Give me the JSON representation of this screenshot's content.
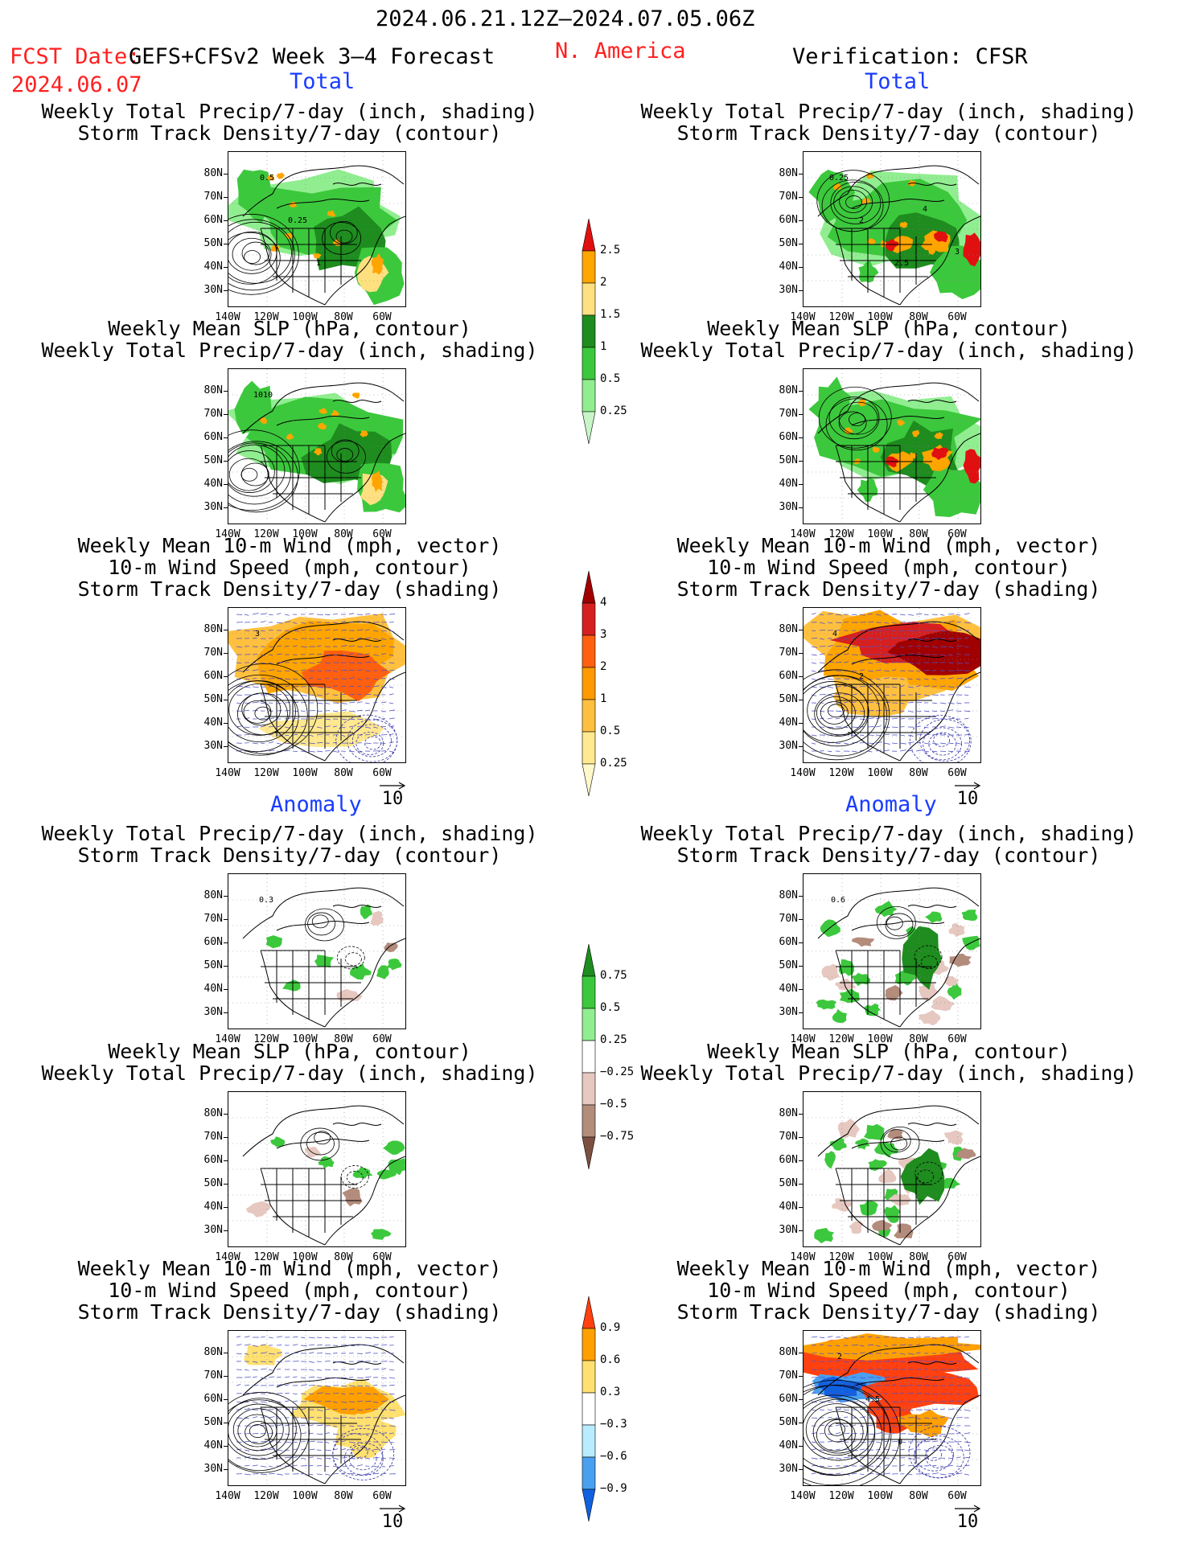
{
  "header": {
    "date_range": "2024.06.21.12Z–2024.07.05.06Z",
    "fcst_label": "FCST Date:",
    "model": "GEFS+CFSv2 Week 3–4 Forecast",
    "fcst_date": "2024.06.07",
    "region": "N. America",
    "verification": "Verification: CFSR"
  },
  "sections": {
    "total": "Total",
    "anomaly": "Anomaly"
  },
  "titles": {
    "precip_storm": "Weekly Total Precip/7-day (inch, shading)\nStorm Track Density/7-day (contour)",
    "slp_precip": "Weekly Mean SLP (hPa, contour)\nWeekly Total Precip/7-day (inch, shading)",
    "wind_storm": "Weekly Mean 10-m Wind (mph, vector)\n10-m Wind Speed (mph, contour)\nStorm Track Density/7-day (shading)"
  },
  "axes": {
    "lat_labels": [
      "80N",
      "70N",
      "60N",
      "50N",
      "40N",
      "30N"
    ],
    "lon_labels": [
      "140W",
      "120W",
      "100W",
      "80W",
      "60W"
    ]
  },
  "vector_ref": "10",
  "contour_labels": {
    "fc_total_precip": [
      "0.5",
      "0.25",
      "1"
    ],
    "fc_total_slp": [
      "1010"
    ],
    "fc_total_wind": [
      "3"
    ],
    "ob_total_precip": [
      "0.25",
      "2",
      "2.5",
      "4",
      "3"
    ],
    "ob_total_wind": [
      "4",
      "2"
    ],
    "fc_anom_precip": [
      "0.3"
    ],
    "ob_anom_precip": [
      "0.6"
    ],
    "ob_anom_wind": [
      "2",
      "4.5",
      "0"
    ]
  },
  "colorbars": {
    "total_precip": {
      "labels": [
        "2.5",
        "2",
        "1.5",
        "1",
        "0.5",
        "0.25"
      ],
      "colors": [
        "#e01010",
        "#ffa500",
        "#ffe080",
        "#1e8c1e",
        "#3cc83c",
        "#90ee90",
        "#c8f5c8"
      ]
    },
    "total_storm": {
      "labels": [
        "4",
        "3",
        "2",
        "1",
        "0.5",
        "0.25"
      ],
      "colors": [
        "#a00000",
        "#d62020",
        "#ff6010",
        "#ff9a00",
        "#ffc040",
        "#ffe890",
        "#fff8c8"
      ]
    },
    "anom_precip": {
      "labels": [
        "0.75",
        "0.5",
        "0.25",
        "−0.25",
        "−0.5",
        "−0.75"
      ],
      "colors": [
        "#1e8c1e",
        "#3cc83c",
        "#90ee90",
        "#ffffff",
        "#e6c8c0",
        "#b48c7c",
        "#7c5040"
      ]
    },
    "anom_storm": {
      "labels": [
        "0.9",
        "0.6",
        "0.3",
        "−0.3",
        "−0.6",
        "−0.9"
      ],
      "colors": [
        "#ff4010",
        "#ffa000",
        "#ffe070",
        "#ffffff",
        "#b8ecff",
        "#4aa0f0",
        "#1060e0"
      ]
    }
  },
  "colors": {
    "header_red": "#ff2020",
    "section_blue": "#1a3cff"
  }
}
